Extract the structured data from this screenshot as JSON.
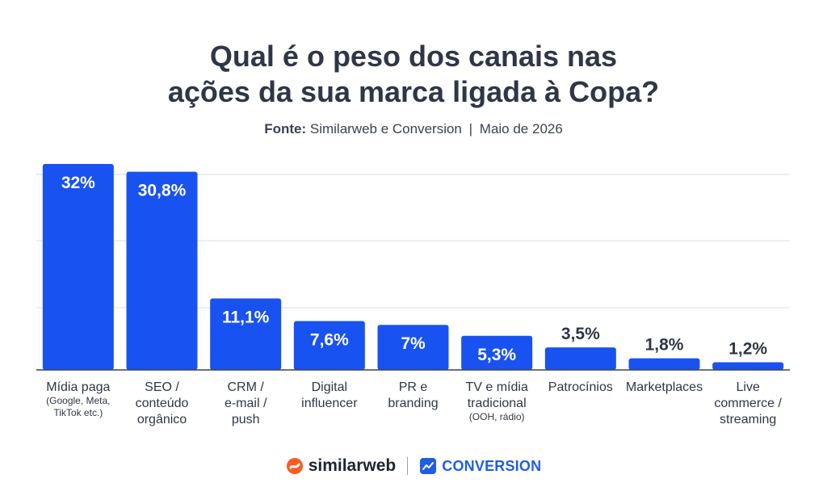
{
  "title_lines": [
    "Qual é o peso dos canais nas",
    "ações da sua marca ligada à Copa?"
  ],
  "source": {
    "label": "Fonte:",
    "text": "Similarweb e Conversion",
    "separator": "|",
    "date": "Maio de 2026"
  },
  "brands": {
    "similarweb": "similarweb",
    "conversion": "CONVERSION"
  },
  "colors": {
    "bar": "#1852f1",
    "text": "#2f3645",
    "grid": "#d9dde3"
  },
  "chart_data": {
    "type": "bar",
    "title": "Qual é o peso dos canais nas ações da sua marca ligada à Copa?",
    "ylim": [
      0,
      32
    ],
    "grid": true,
    "categories": [
      {
        "label_lines": [
          "Mídia paga"
        ],
        "note_lines": [
          "(Google, Meta,",
          "TikTok etc.)"
        ]
      },
      {
        "label_lines": [
          "SEO /",
          "conteúdo",
          "orgânico"
        ],
        "note_lines": []
      },
      {
        "label_lines": [
          "CRM /",
          "e-mail /",
          "push"
        ],
        "note_lines": []
      },
      {
        "label_lines": [
          "Digital",
          "influencer"
        ],
        "note_lines": []
      },
      {
        "label_lines": [
          "PR e",
          "branding"
        ],
        "note_lines": []
      },
      {
        "label_lines": [
          "TV e mídia",
          "tradicional"
        ],
        "note_lines": [
          "(OOH, rádio)"
        ]
      },
      {
        "label_lines": [
          "Patrocínios"
        ],
        "note_lines": []
      },
      {
        "label_lines": [
          "Marketplaces"
        ],
        "note_lines": []
      },
      {
        "label_lines": [
          "Live",
          "commerce /",
          "streaming"
        ],
        "note_lines": []
      }
    ],
    "values": [
      32,
      30.8,
      11.1,
      7.6,
      7,
      5.3,
      3.5,
      1.8,
      1.2
    ],
    "value_labels": [
      "32%",
      "30,8%",
      "11,1%",
      "7,6%",
      "7%",
      "5,3%",
      "3,5%",
      "1,8%",
      "1,2%"
    ]
  }
}
